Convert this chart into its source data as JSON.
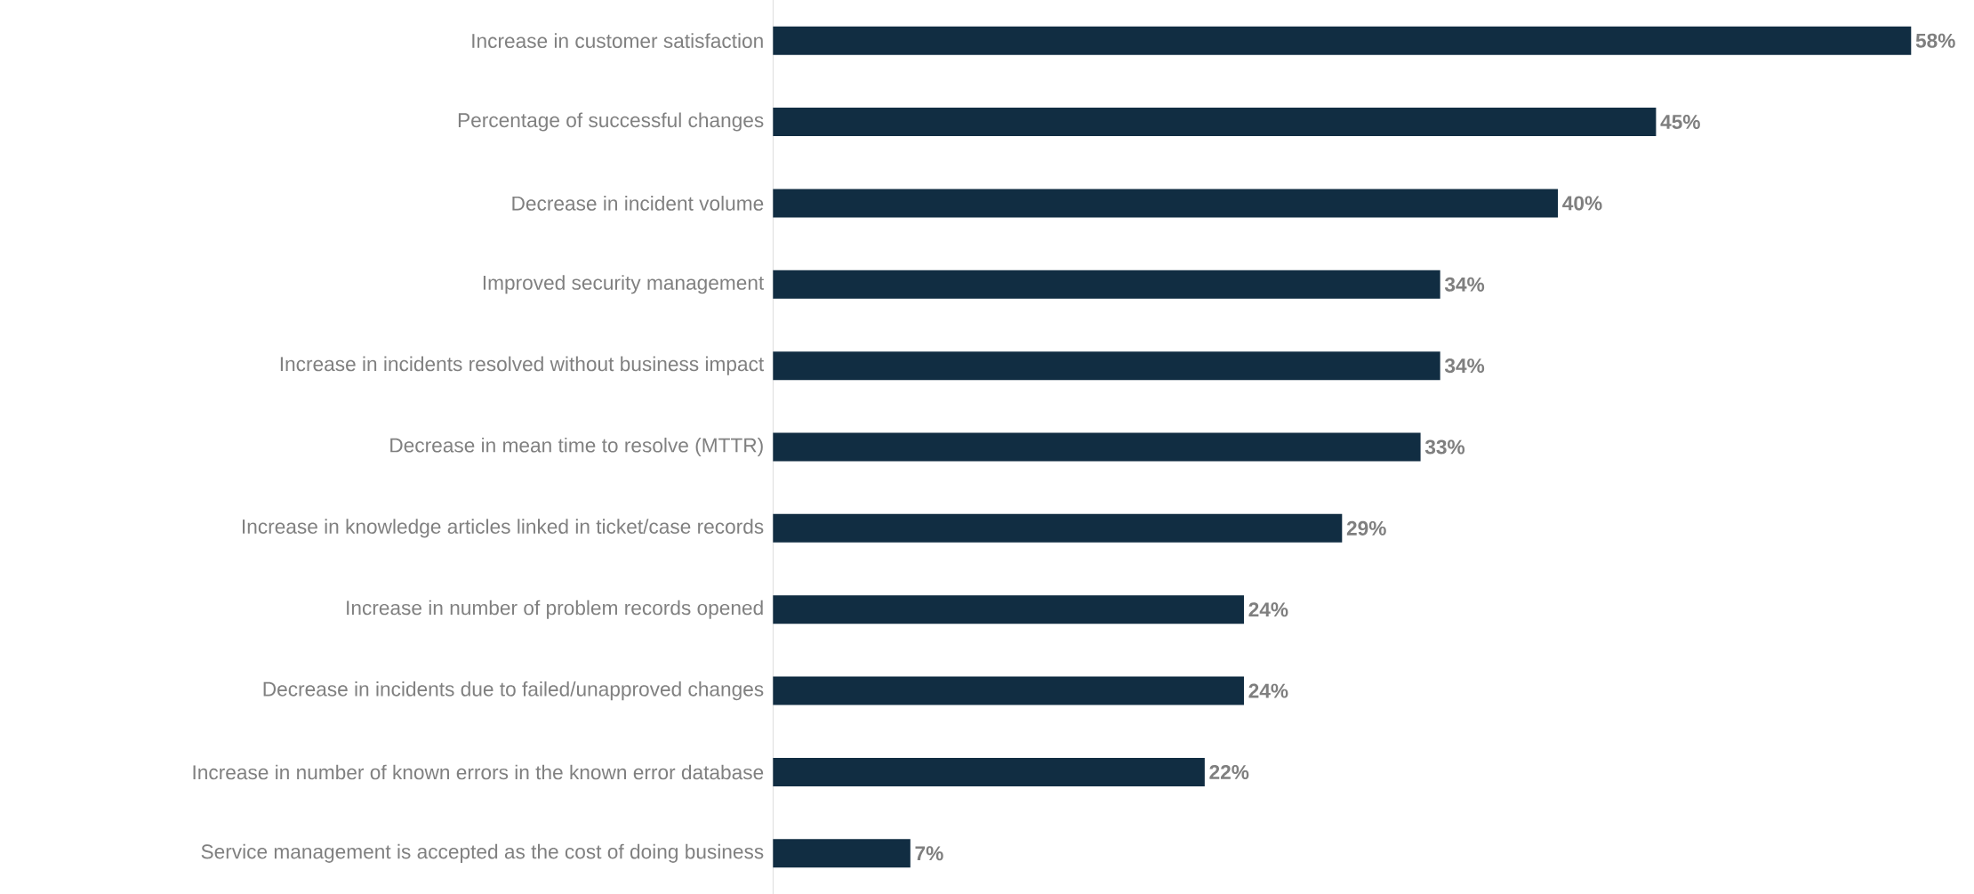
{
  "chart_data": {
    "type": "bar",
    "orientation": "horizontal",
    "categories": [
      "Increase in customer satisfaction",
      "Percentage of successful changes",
      "Decrease in incident volume",
      "Improved security management",
      "Increase in incidents resolved without business impact",
      "Decrease in mean time to resolve (MTTR)",
      "Increase in knowledge articles linked in ticket/case records",
      "Increase in number of problem records opened",
      "Decrease in incidents due to failed/unapproved changes",
      "Increase in number of known errors in the known error database",
      "Service management is accepted as the cost of doing business"
    ],
    "values": [
      58,
      45,
      40,
      34,
      34,
      33,
      29,
      24,
      24,
      22,
      7
    ],
    "value_labels": [
      "58%",
      "45%",
      "40%",
      "34%",
      "34%",
      "33%",
      "29%",
      "24%",
      "24%",
      "22%",
      "7%"
    ],
    "color": "#112d42"
  }
}
